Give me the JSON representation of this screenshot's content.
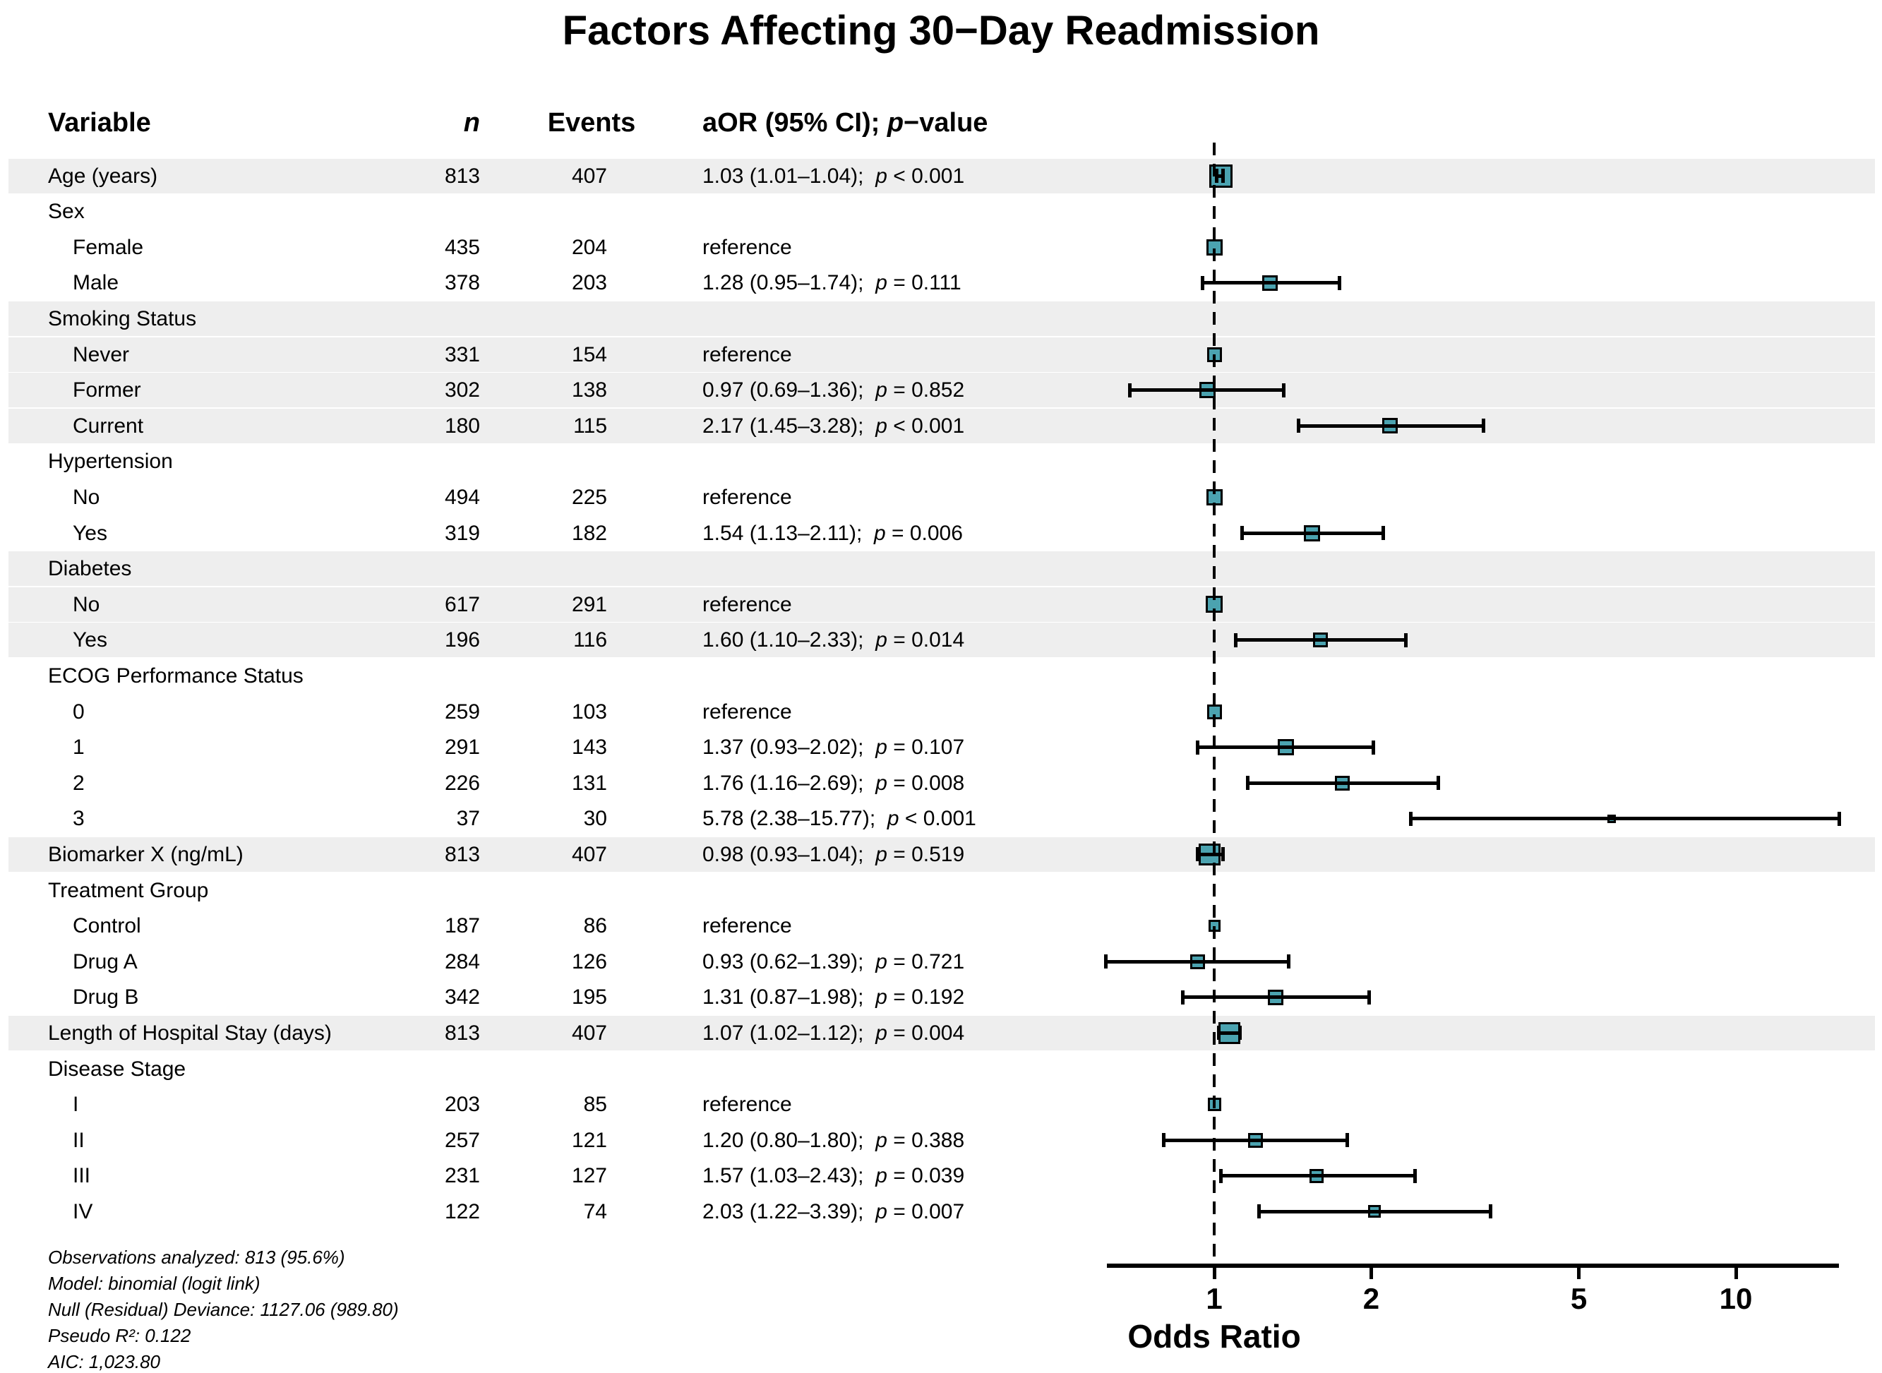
{
  "title": "Factors Affecting 30−Day Readmission",
  "columns": {
    "variable": "Variable",
    "n": "n",
    "events": "Events",
    "aor_prefix": "aOR (95% CI); ",
    "aor_italic": "p",
    "aor_suffix": "−value"
  },
  "axis": {
    "label": "Odds Ratio",
    "scale": "log10",
    "ref_line": 1,
    "ticks": [
      {
        "value": 1,
        "label": "1"
      },
      {
        "value": 2,
        "label": "2"
      },
      {
        "value": 5,
        "label": "5"
      },
      {
        "value": 10,
        "label": "10"
      }
    ]
  },
  "colors": {
    "marker": "#4BA3B0",
    "band": "#EEEEEE",
    "text": "#000000"
  },
  "footer": {
    "lines": [
      "Observations analyzed: 813 (95.6%)",
      "Model: binomial (logit link)",
      "Null (Residual) Deviance: 1127.06 (989.80)",
      "Pseudo R²: 0.122",
      "AIC: 1,023.80"
    ]
  },
  "chart_data": {
    "type": "forest",
    "title": "Factors Affecting 30−Day Readmission",
    "xlabel": "Odds Ratio",
    "x_scale": "log10",
    "x_ticks": [
      1,
      2,
      5,
      10
    ],
    "x_range": [
      0.62,
      15.77
    ],
    "ref_line": 1,
    "legend": null,
    "rows": [
      {
        "label": "Age (years)",
        "type": "single",
        "indent": false,
        "shaded": true,
        "n": "813",
        "events": "407",
        "est": "1.03 (1.01–1.04)",
        "p": "< 0.001",
        "or": 1.03,
        "lo": 1.01,
        "hi": 1.04,
        "ref": false,
        "size": 33
      },
      {
        "label": "Sex",
        "type": "group",
        "indent": false,
        "shaded": false
      },
      {
        "label": "Female",
        "type": "item",
        "indent": true,
        "shaded": false,
        "n": "435",
        "events": "204",
        "est": "reference",
        "p": null,
        "or": 1.0,
        "lo": null,
        "hi": null,
        "ref": true,
        "size": 23
      },
      {
        "label": "Male",
        "type": "item",
        "indent": true,
        "shaded": false,
        "n": "378",
        "events": "203",
        "est": "1.28 (0.95–1.74)",
        "p": "= 0.111",
        "or": 1.28,
        "lo": 0.95,
        "hi": 1.74,
        "ref": false,
        "size": 22
      },
      {
        "label": "Smoking Status",
        "type": "group",
        "indent": false,
        "shaded": true
      },
      {
        "label": "Never",
        "type": "item",
        "indent": true,
        "shaded": true,
        "n": "331",
        "events": "154",
        "est": "reference",
        "p": null,
        "or": 1.0,
        "lo": null,
        "hi": null,
        "ref": true,
        "size": 21
      },
      {
        "label": "Former",
        "type": "item",
        "indent": true,
        "shaded": true,
        "n": "302",
        "events": "138",
        "est": "0.97 (0.69–1.36)",
        "p": "= 0.852",
        "or": 0.97,
        "lo": 0.69,
        "hi": 1.36,
        "ref": false,
        "size": 23
      },
      {
        "label": "Current",
        "type": "item",
        "indent": true,
        "shaded": true,
        "n": "180",
        "events": "115",
        "est": "2.17 (1.45–3.28)",
        "p": "< 0.001",
        "or": 2.17,
        "lo": 1.45,
        "hi": 3.28,
        "ref": false,
        "size": 22
      },
      {
        "label": "Hypertension",
        "type": "group",
        "indent": false,
        "shaded": false
      },
      {
        "label": "No",
        "type": "item",
        "indent": true,
        "shaded": false,
        "n": "494",
        "events": "225",
        "est": "reference",
        "p": null,
        "or": 1.0,
        "lo": null,
        "hi": null,
        "ref": true,
        "size": 23
      },
      {
        "label": "Yes",
        "type": "item",
        "indent": true,
        "shaded": false,
        "n": "319",
        "events": "182",
        "est": "1.54 (1.13–2.11)",
        "p": "= 0.006",
        "or": 1.54,
        "lo": 1.13,
        "hi": 2.11,
        "ref": false,
        "size": 23
      },
      {
        "label": "Diabetes",
        "type": "group",
        "indent": false,
        "shaded": true
      },
      {
        "label": "No",
        "type": "item",
        "indent": true,
        "shaded": true,
        "n": "617",
        "events": "291",
        "est": "reference",
        "p": null,
        "or": 1.0,
        "lo": null,
        "hi": null,
        "ref": true,
        "size": 24
      },
      {
        "label": "Yes",
        "type": "item",
        "indent": true,
        "shaded": true,
        "n": "196",
        "events": "116",
        "est": "1.60 (1.10–2.33)",
        "p": "= 0.014",
        "or": 1.6,
        "lo": 1.1,
        "hi": 2.33,
        "ref": false,
        "size": 21
      },
      {
        "label": "ECOG Performance Status",
        "type": "group",
        "indent": false,
        "shaded": false
      },
      {
        "label": "0",
        "type": "item",
        "indent": true,
        "shaded": false,
        "n": "259",
        "events": "103",
        "est": "reference",
        "p": null,
        "or": 1.0,
        "lo": null,
        "hi": null,
        "ref": true,
        "size": 21
      },
      {
        "label": "1",
        "type": "item",
        "indent": true,
        "shaded": false,
        "n": "291",
        "events": "143",
        "est": "1.37 (0.93–2.02)",
        "p": "= 0.107",
        "or": 1.37,
        "lo": 0.93,
        "hi": 2.02,
        "ref": false,
        "size": 23
      },
      {
        "label": "2",
        "type": "item",
        "indent": true,
        "shaded": false,
        "n": "226",
        "events": "131",
        "est": "1.76 (1.16–2.69)",
        "p": "= 0.008",
        "or": 1.76,
        "lo": 1.16,
        "hi": 2.69,
        "ref": false,
        "size": 21
      },
      {
        "label": "3",
        "type": "item",
        "indent": true,
        "shaded": false,
        "n": "37",
        "events": "30",
        "est": "5.78 (2.38–15.77)",
        "p": "< 0.001",
        "or": 5.78,
        "lo": 2.38,
        "hi": 15.77,
        "ref": false,
        "size": 12
      },
      {
        "label": "Biomarker X (ng/mL)",
        "type": "single",
        "indent": false,
        "shaded": true,
        "n": "813",
        "events": "407",
        "est": "0.98 (0.93–1.04)",
        "p": "= 0.519",
        "or": 0.98,
        "lo": 0.93,
        "hi": 1.04,
        "ref": false,
        "size": 31
      },
      {
        "label": "Treatment Group",
        "type": "group",
        "indent": false,
        "shaded": false
      },
      {
        "label": "Control",
        "type": "item",
        "indent": true,
        "shaded": false,
        "n": "187",
        "events": "86",
        "est": "reference",
        "p": null,
        "or": 1.0,
        "lo": null,
        "hi": null,
        "ref": true,
        "size": 17
      },
      {
        "label": "Drug A",
        "type": "item",
        "indent": true,
        "shaded": false,
        "n": "284",
        "events": "126",
        "est": "0.93 (0.62–1.39)",
        "p": "= 0.721",
        "or": 0.93,
        "lo": 0.62,
        "hi": 1.39,
        "ref": false,
        "size": 21
      },
      {
        "label": "Drug B",
        "type": "item",
        "indent": true,
        "shaded": false,
        "n": "342",
        "events": "195",
        "est": "1.31 (0.87–1.98)",
        "p": "= 0.192",
        "or": 1.31,
        "lo": 0.87,
        "hi": 1.98,
        "ref": false,
        "size": 22
      },
      {
        "label": "Length of Hospital Stay (days)",
        "type": "single",
        "indent": false,
        "shaded": true,
        "n": "813",
        "events": "407",
        "est": "1.07 (1.02–1.12)",
        "p": "= 0.004",
        "or": 1.07,
        "lo": 1.02,
        "hi": 1.12,
        "ref": false,
        "size": 31
      },
      {
        "label": "Disease Stage",
        "type": "group",
        "indent": false,
        "shaded": false
      },
      {
        "label": "I",
        "type": "item",
        "indent": true,
        "shaded": false,
        "n": "203",
        "events": "85",
        "est": "reference",
        "p": null,
        "or": 1.0,
        "lo": null,
        "hi": null,
        "ref": true,
        "size": 19
      },
      {
        "label": "II",
        "type": "item",
        "indent": true,
        "shaded": false,
        "n": "257",
        "events": "121",
        "est": "1.20 (0.80–1.80)",
        "p": "= 0.388",
        "or": 1.2,
        "lo": 0.8,
        "hi": 1.8,
        "ref": false,
        "size": 21
      },
      {
        "label": "III",
        "type": "item",
        "indent": true,
        "shaded": false,
        "n": "231",
        "events": "127",
        "est": "1.57 (1.03–2.43)",
        "p": "= 0.039",
        "or": 1.57,
        "lo": 1.03,
        "hi": 2.43,
        "ref": false,
        "size": 20
      },
      {
        "label": "IV",
        "type": "item",
        "indent": true,
        "shaded": false,
        "n": "122",
        "events": "74",
        "est": "2.03 (1.22–3.39)",
        "p": "= 0.007",
        "or": 2.03,
        "lo": 1.22,
        "hi": 3.39,
        "ref": false,
        "size": 18
      }
    ]
  }
}
